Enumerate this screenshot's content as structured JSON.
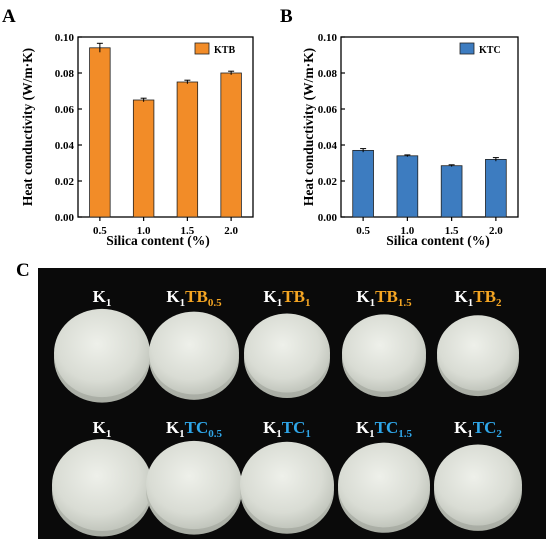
{
  "colors": {
    "ktb": "#F28C28",
    "ktc": "#3D7CC0",
    "photo_bg": "#0a0a0a",
    "label_white": "#ffffff",
    "label_orange": "#F5A623",
    "label_blue": "#2FA6E8"
  },
  "chart_data": [
    {
      "panel": "A",
      "type": "bar",
      "categories": [
        "0.5",
        "1.0",
        "1.5",
        "2.0"
      ],
      "series": [
        {
          "name": "KTB",
          "values": [
            0.094,
            0.065,
            0.075,
            0.08
          ],
          "errors": [
            0.0025,
            0.001,
            0.001,
            0.001
          ]
        }
      ],
      "xlabel": "Silica content (%)",
      "ylabel": "Heat conductivity (W/m·K)",
      "ylim": [
        0,
        0.1
      ],
      "yticks": [
        "0.00",
        "0.02",
        "0.04",
        "0.06",
        "0.08",
        "0.10"
      ],
      "legend": "top-right",
      "grid": false
    },
    {
      "panel": "B",
      "type": "bar",
      "categories": [
        "0.5",
        "1.0",
        "1.5",
        "2.0"
      ],
      "series": [
        {
          "name": "KTC",
          "values": [
            0.037,
            0.034,
            0.0285,
            0.032
          ],
          "errors": [
            0.001,
            0.0005,
            0.0005,
            0.001
          ]
        }
      ],
      "xlabel": "Silica content (%)",
      "ylabel": "Heat conductivity (W/m·K)",
      "ylim": [
        0,
        0.1
      ],
      "yticks": [
        "0.00",
        "0.02",
        "0.04",
        "0.06",
        "0.08",
        "0.10"
      ],
      "legend": "top-right",
      "grid": false
    }
  ],
  "photo_panel": {
    "label": "C",
    "rows": [
      [
        {
          "base": "K",
          "base_sub": "1",
          "suffix": "",
          "suffix_sub": "",
          "suffix_color": "white"
        },
        {
          "base": "K",
          "base_sub": "1",
          "suffix": "TB",
          "suffix_sub": "0.5",
          "suffix_color": "orange"
        },
        {
          "base": "K",
          "base_sub": "1",
          "suffix": "TB",
          "suffix_sub": "1",
          "suffix_color": "orange"
        },
        {
          "base": "K",
          "base_sub": "1",
          "suffix": "TB",
          "suffix_sub": "1.5",
          "suffix_color": "orange"
        },
        {
          "base": "K",
          "base_sub": "1",
          "suffix": "TB",
          "suffix_sub": "2",
          "suffix_color": "orange"
        }
      ],
      [
        {
          "base": "K",
          "base_sub": "1",
          "suffix": "",
          "suffix_sub": "",
          "suffix_color": "white"
        },
        {
          "base": "K",
          "base_sub": "1",
          "suffix": "TC",
          "suffix_sub": "0.5",
          "suffix_color": "blue"
        },
        {
          "base": "K",
          "base_sub": "1",
          "suffix": "TC",
          "suffix_sub": "1",
          "suffix_color": "blue"
        },
        {
          "base": "K",
          "base_sub": "1",
          "suffix": "TC",
          "suffix_sub": "1.5",
          "suffix_color": "blue"
        },
        {
          "base": "K",
          "base_sub": "1",
          "suffix": "TC",
          "suffix_sub": "2",
          "suffix_color": "blue"
        }
      ]
    ]
  }
}
